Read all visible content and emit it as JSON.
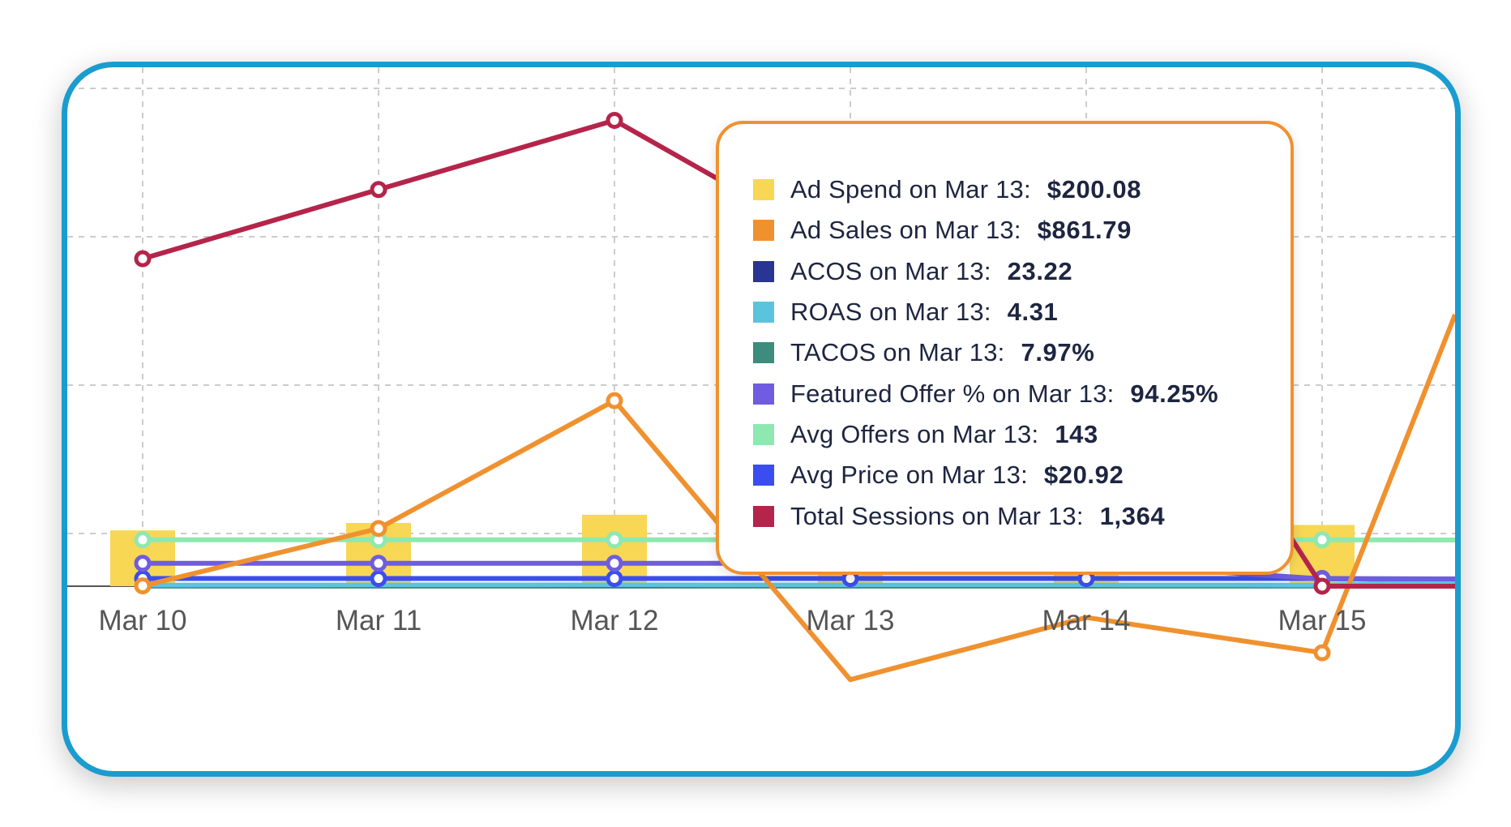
{
  "chart_data": {
    "type": "bar+line",
    "categories": [
      "Mar 10",
      "Mar 11",
      "Mar 12",
      "Mar 13",
      "Mar 14",
      "Mar 15"
    ],
    "grid": true,
    "series": [
      {
        "name": "Ad Spend",
        "type": "bar",
        "color": "#f7d754",
        "values": [
          229.4,
          259.9,
          293.7,
          200.08,
          272.6,
          251.6
        ]
      },
      {
        "name": "Ad Sales",
        "type": "line",
        "color": "#f0912f",
        "values": [
          1218,
          1436,
          1922,
          861.79,
          1098,
          964
        ]
      },
      {
        "name": "ACOS",
        "type": "line",
        "color": "#283593",
        "values": [
          23.5,
          23.3,
          23.1,
          23.22,
          23.4,
          23.6
        ]
      },
      {
        "name": "ROAS",
        "type": "line",
        "color": "#5bc4dc",
        "values": [
          4.2,
          4.3,
          4.4,
          4.31,
          4.3,
          4.2
        ]
      },
      {
        "name": "TACOS",
        "type": "line",
        "color": "#3d8c7d",
        "values": [
          7.8,
          7.9,
          8.1,
          7.97,
          8.0,
          7.9
        ]
      },
      {
        "name": "Featured Offer %",
        "type": "line",
        "color": "#6f5ce0",
        "values": [
          94.1,
          94.3,
          94.2,
          94.25,
          94.0,
          30.0
        ]
      },
      {
        "name": "Avg Offers",
        "type": "line",
        "color": "#8ee8b0",
        "values": [
          143,
          143,
          143,
          143,
          143,
          143
        ]
      },
      {
        "name": "Avg Price",
        "type": "line",
        "color": "#3a4ef0",
        "values": [
          20.9,
          20.9,
          20.92,
          20.92,
          20.9,
          20.95
        ]
      },
      {
        "name": "Total Sessions",
        "type": "line",
        "color": "#b5244a",
        "values": [
          1344,
          1628,
          1912,
          1364,
          1505,
          0
        ]
      }
    ]
  },
  "tooltip": {
    "rows": [
      {
        "label": "Ad Spend on Mar 13:",
        "value": "$200.08",
        "color": "#f7d754"
      },
      {
        "label": "Ad Sales on Mar 13:",
        "value": "$861.79",
        "color": "#f0912f"
      },
      {
        "label": "ACOS on Mar 13:",
        "value": "23.22",
        "color": "#283593"
      },
      {
        "label": "ROAS on Mar 13:",
        "value": "4.31",
        "color": "#5bc4dc"
      },
      {
        "label": "TACOS on Mar 13:",
        "value": "7.97%",
        "color": "#3d8c7d"
      },
      {
        "label": "Featured Offer % on Mar 13:",
        "value": "94.25%",
        "color": "#6f5ce0"
      },
      {
        "label": "Avg Offers on Mar 13:",
        "value": "143",
        "color": "#8ee8b0"
      },
      {
        "label": "Avg Price on Mar 13:",
        "value": "$20.92",
        "color": "#3a4ef0"
      },
      {
        "label": "Total Sessions on Mar 13:",
        "value": "1,364",
        "color": "#b5244a"
      }
    ]
  },
  "colors": {
    "frame": "#1a9ccf",
    "tooltip_border": "#f0912f",
    "grid": "#cccccc"
  }
}
